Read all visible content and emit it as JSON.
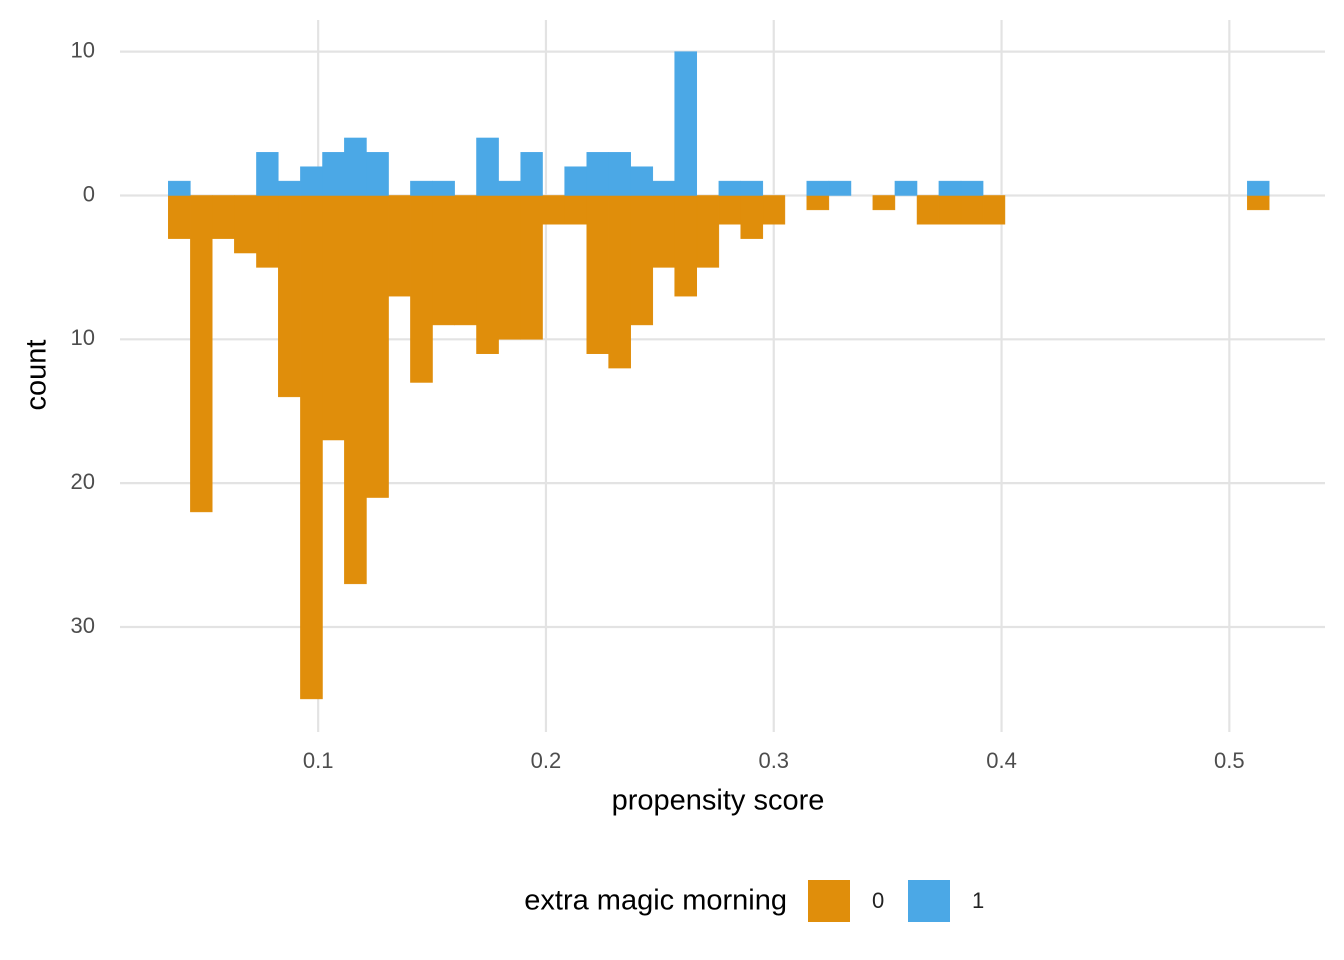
{
  "chart_data": {
    "type": "histogram",
    "x_label": "propensity score",
    "y_label": "count",
    "legend_title": "extra magic morning",
    "bins": [
      0.0342,
      0.0439,
      0.0535,
      0.0632,
      0.0729,
      0.0825,
      0.0922,
      0.1019,
      0.1115,
      0.1212,
      0.1309,
      0.1405,
      0.1502,
      0.1599,
      0.1695,
      0.1792,
      0.1889,
      0.1985,
      0.2082,
      0.2179,
      0.2275,
      0.2372,
      0.2469,
      0.2565,
      0.2662,
      0.2759,
      0.2855,
      0.2952,
      0.3049,
      0.3145,
      0.3242,
      0.3339,
      0.3435,
      0.3532,
      0.3629,
      0.3725,
      0.3822,
      0.3919,
      0.4015,
      0.4112,
      0.4209,
      0.4305,
      0.4402,
      0.4499,
      0.4595,
      0.4692,
      0.4789,
      0.4885,
      0.4982,
      0.5079,
      0.5175
    ],
    "series": [
      {
        "name": "0",
        "color": "#E08E0B",
        "values": [
          -3,
          -22,
          -3,
          -4,
          -5,
          -14,
          -35,
          -17,
          -27,
          -21,
          -7,
          -13,
          -9,
          -9,
          -11,
          -10,
          -10,
          -2,
          -2,
          -11,
          -12,
          -9,
          -5,
          -7,
          -5,
          -2,
          -3,
          -2,
          0,
          -1,
          0,
          0,
          -1,
          0,
          -2,
          -2,
          -2,
          -2,
          0,
          0,
          0,
          0,
          0,
          0,
          0,
          0,
          0,
          0,
          0,
          -1
        ]
      },
      {
        "name": "1",
        "color": "#4BA8E6",
        "values": [
          1,
          0,
          0,
          0,
          3,
          1,
          2,
          3,
          4,
          3,
          0,
          1,
          1,
          0,
          4,
          1,
          3,
          0,
          2,
          3,
          3,
          2,
          1,
          10,
          0,
          1,
          1,
          0,
          0,
          1,
          1,
          0,
          0,
          1,
          0,
          1,
          1,
          0,
          0,
          0,
          0,
          0,
          0,
          0,
          0,
          0,
          0,
          0,
          0,
          1
        ]
      }
    ],
    "xlim": [
      0.013,
      0.542
    ],
    "xticks": [
      0.1,
      0.2,
      0.3,
      0.4,
      0.5
    ],
    "ylim": [
      -37.3,
      12.2
    ],
    "yticks": [
      {
        "value": -30,
        "label": "30"
      },
      {
        "value": -20,
        "label": "20"
      },
      {
        "value": -10,
        "label": "10"
      },
      0,
      10
    ],
    "grid": true,
    "legend_position": "bottom"
  }
}
